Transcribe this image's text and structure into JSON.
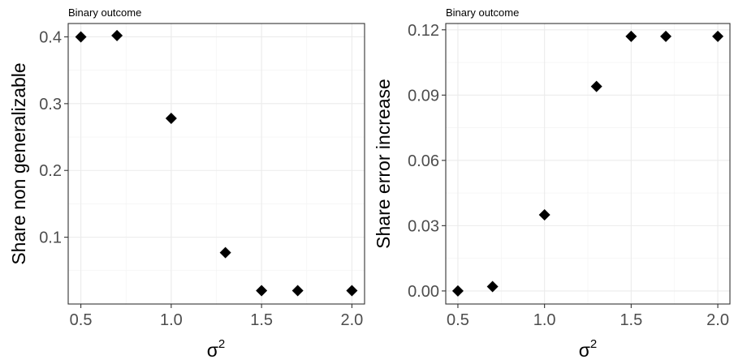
{
  "chart_data": [
    {
      "type": "scatter",
      "subtitle": "Binary outcome",
      "xlabel": "σ",
      "xlabel_sup": "2",
      "ylabel": "Share non generalizable",
      "x_ticks": [
        "0.5",
        "1.0",
        "1.5",
        "2.0"
      ],
      "y_ticks": [
        "0.1",
        "0.2",
        "0.3",
        "0.4"
      ],
      "xlim": [
        0.43,
        2.07
      ],
      "ylim": [
        0.0,
        0.42
      ],
      "grid": true,
      "marker": "diamond",
      "x": [
        0.5,
        0.7,
        1.0,
        1.3,
        1.5,
        1.7,
        2.0
      ],
      "y": [
        0.4,
        0.402,
        0.278,
        0.077,
        0.02,
        0.02,
        0.02
      ]
    },
    {
      "type": "scatter",
      "subtitle": "Binary outcome",
      "xlabel": "σ",
      "xlabel_sup": "2",
      "ylabel": "Share error increase",
      "x_ticks": [
        "0.5",
        "1.0",
        "1.5",
        "2.0"
      ],
      "y_ticks": [
        "0.00",
        "0.03",
        "0.06",
        "0.09",
        "0.12"
      ],
      "xlim": [
        0.43,
        2.07
      ],
      "ylim": [
        -0.006,
        0.1229
      ],
      "grid": true,
      "marker": "diamond",
      "x": [
        0.5,
        0.7,
        1.0,
        1.3,
        1.5,
        1.7,
        2.0
      ],
      "y": [
        0.0,
        0.002,
        0.035,
        0.094,
        0.117,
        0.117,
        0.117
      ]
    }
  ]
}
